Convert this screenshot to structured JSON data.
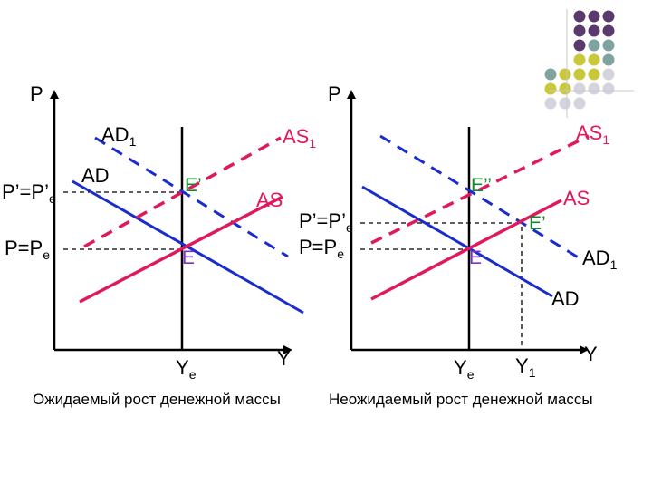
{
  "colors": {
    "ad": "#1a2ccc",
    "as": "#e0185e",
    "axis": "#000000",
    "point_e": "#7b32c8",
    "point_e_prime": "#0f8a2a",
    "deco_purple": "#5a3a6e",
    "deco_teal": "#7fa3a0",
    "deco_olive": "#c8c83a",
    "deco_grey": "#d4d4de"
  },
  "left_panel": {
    "axis_y": "P",
    "axis_x": "Y",
    "ad1": {
      "main": "AD",
      "sub": "1"
    },
    "ad": "AD",
    "as1": {
      "main": "AS",
      "sub": "1"
    },
    "as": "AS",
    "p_prime_e": {
      "main": "P’=P’",
      "sub": "e"
    },
    "p_e": {
      "main": "P=P",
      "sub": "e"
    },
    "e_prime": "E’",
    "e": "E",
    "y_e": {
      "main": "Y",
      "sub": "e"
    },
    "caption": "Ожидаемый рост денежной массы"
  },
  "right_panel": {
    "axis_y": "P",
    "axis_x": "Y",
    "as1": {
      "main": "AS",
      "sub": "1"
    },
    "as": "AS",
    "ad1": {
      "main": "AD",
      "sub": "1"
    },
    "ad": "AD",
    "p_prime_e": {
      "main": "P’=P’",
      "sub": "e"
    },
    "p_e": {
      "main": "P=P",
      "sub": "e"
    },
    "e_double_prime": "E’’",
    "e_prime": "E’",
    "e": "E",
    "y_e": {
      "main": "Y",
      "sub": "e"
    },
    "y_1": {
      "main": "Y",
      "sub": "1"
    },
    "caption": "Неожидаемый рост денежной массы"
  }
}
